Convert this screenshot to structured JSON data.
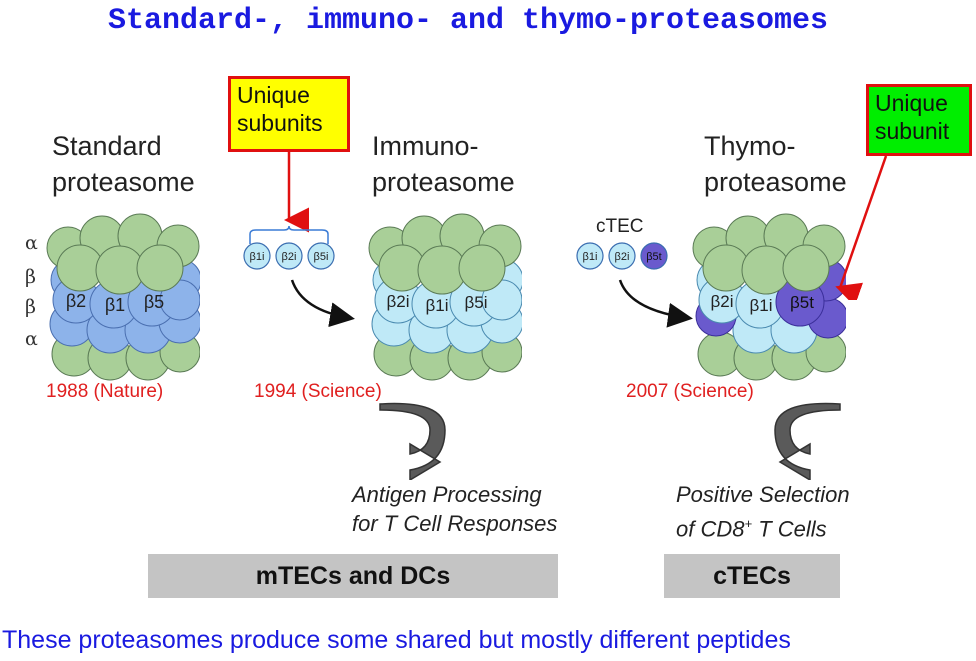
{
  "title": "Standard-, immuno- and thymo-proteasomes",
  "standard": {
    "heading_line1": "Standard",
    "heading_line2": "proteasome",
    "ring_labels": [
      "α",
      "β",
      "β",
      "α"
    ],
    "subunits": [
      "β2",
      "β1",
      "β5"
    ],
    "citation": "1988 (Nature)"
  },
  "immuno": {
    "callout_line1": "Unique",
    "callout_line2": "subunits",
    "free_subunits": [
      "β1i",
      "β2i",
      "β5i"
    ],
    "heading_line1": "Immuno-",
    "heading_line2": "proteasome",
    "subunits": [
      "β2i",
      "β1i",
      "β5i"
    ],
    "citation": "1994 (Science)",
    "caption_line1": "Antigen Processing",
    "caption_line2": "for T Cell Responses",
    "bar_label": "mTECs and DCs"
  },
  "thymo": {
    "cell_label": "cTEC",
    "free_subunits": [
      "β1i",
      "β2i",
      "β5t"
    ],
    "heading_line1": "Thymo-",
    "heading_line2": "proteasome",
    "callout_line1": "Unique",
    "callout_line2": "subunit",
    "subunits": [
      "β2i",
      "β1i",
      "β5t"
    ],
    "citation": "2007 (Science)",
    "caption_line1": "Positive Selection",
    "caption_line2_a": "of CD8",
    "caption_line2_sup": "+",
    "caption_line2_b": " T Cells",
    "bar_label": "cTECs"
  },
  "colors": {
    "title": "#1a1ae0",
    "alpha_ring": "#a9cf98",
    "beta_standard": "#8db3ea",
    "beta_immuno": "#bfe9f7",
    "beta5t": "#6a5acd",
    "callout_yellow": "#ffff00",
    "callout_green": "#00ee00",
    "citation_red": "#e02020",
    "bar_gray": "#c4c4c4"
  },
  "footer": "These proteasomes produce some shared but mostly different peptides"
}
